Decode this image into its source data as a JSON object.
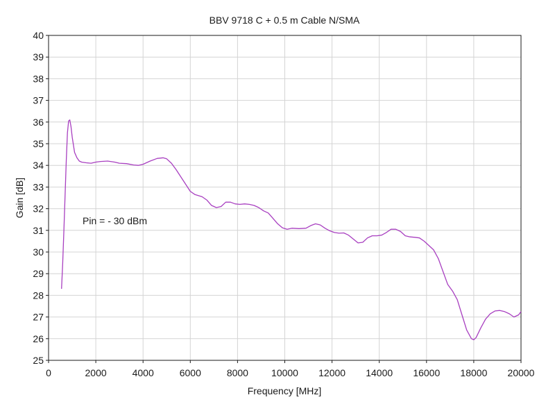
{
  "chart_data": {
    "type": "line",
    "title": "BBV 9718 C + 0.5 m Cable N/SMA",
    "xlabel": "Frequency [MHz]",
    "ylabel": "Gain [dB]",
    "xlim": [
      0,
      20000
    ],
    "ylim": [
      25,
      40
    ],
    "x_ticks": [
      "0",
      "2000",
      "4000",
      "6000",
      "8000",
      "10000",
      "12000",
      "14000",
      "16000",
      "18000",
      "20000"
    ],
    "y_ticks": [
      "25",
      "26",
      "27",
      "28",
      "29",
      "30",
      "31",
      "32",
      "33",
      "34",
      "35",
      "36",
      "37",
      "38",
      "39",
      "40"
    ],
    "grid": true,
    "annotation": "Pin = - 30 dBm",
    "line_color": "#a83fc0",
    "series": [
      {
        "x": [
          550,
          600,
          650,
          700,
          750,
          800,
          850,
          900,
          950,
          1000,
          1100,
          1200,
          1300,
          1400,
          1600,
          1800,
          2000,
          2200,
          2500,
          2800,
          3000,
          3300,
          3600,
          3800,
          4000,
          4300,
          4600,
          4850,
          5000,
          5200,
          5400,
          5700,
          6000,
          6200,
          6500,
          6700,
          6900,
          7100,
          7300,
          7500,
          7700,
          7900,
          8100,
          8300,
          8500,
          8700,
          8900,
          9100,
          9300,
          9500,
          9700,
          9900,
          10100,
          10300,
          10600,
          10900,
          11100,
          11300,
          11500,
          11700,
          11900,
          12100,
          12300,
          12500,
          12700,
          12900,
          13100,
          13300,
          13500,
          13700,
          13900,
          14100,
          14300,
          14500,
          14700,
          14900,
          15100,
          15300,
          15500,
          15700,
          15900,
          16100,
          16300,
          16500,
          16700,
          16900,
          17100,
          17300,
          17500,
          17700,
          17900,
          18000,
          18100,
          18300,
          18500,
          18700,
          18900,
          19100,
          19300,
          19500,
          19700,
          19900,
          20000
        ],
        "y": [
          28.3,
          29.5,
          31.0,
          32.6,
          34.2,
          35.5,
          36.05,
          36.1,
          35.8,
          35.3,
          34.6,
          34.35,
          34.2,
          34.15,
          34.12,
          34.1,
          34.15,
          34.18,
          34.2,
          34.15,
          34.1,
          34.08,
          34.02,
          34.0,
          34.05,
          34.2,
          34.32,
          34.35,
          34.3,
          34.1,
          33.8,
          33.3,
          32.8,
          32.65,
          32.55,
          32.4,
          32.15,
          32.05,
          32.1,
          32.3,
          32.3,
          32.22,
          32.2,
          32.22,
          32.2,
          32.15,
          32.05,
          31.9,
          31.8,
          31.55,
          31.3,
          31.12,
          31.05,
          31.1,
          31.08,
          31.1,
          31.22,
          31.3,
          31.25,
          31.1,
          30.98,
          30.9,
          30.87,
          30.88,
          30.78,
          30.6,
          30.42,
          30.45,
          30.65,
          30.75,
          30.75,
          30.78,
          30.9,
          31.05,
          31.05,
          30.95,
          30.75,
          30.7,
          30.68,
          30.65,
          30.5,
          30.3,
          30.1,
          29.7,
          29.1,
          28.5,
          28.2,
          27.8,
          27.1,
          26.4,
          26.0,
          25.95,
          26.05,
          26.5,
          26.9,
          27.15,
          27.28,
          27.3,
          27.25,
          27.15,
          27.0,
          27.1,
          27.25
        ]
      }
    ]
  }
}
